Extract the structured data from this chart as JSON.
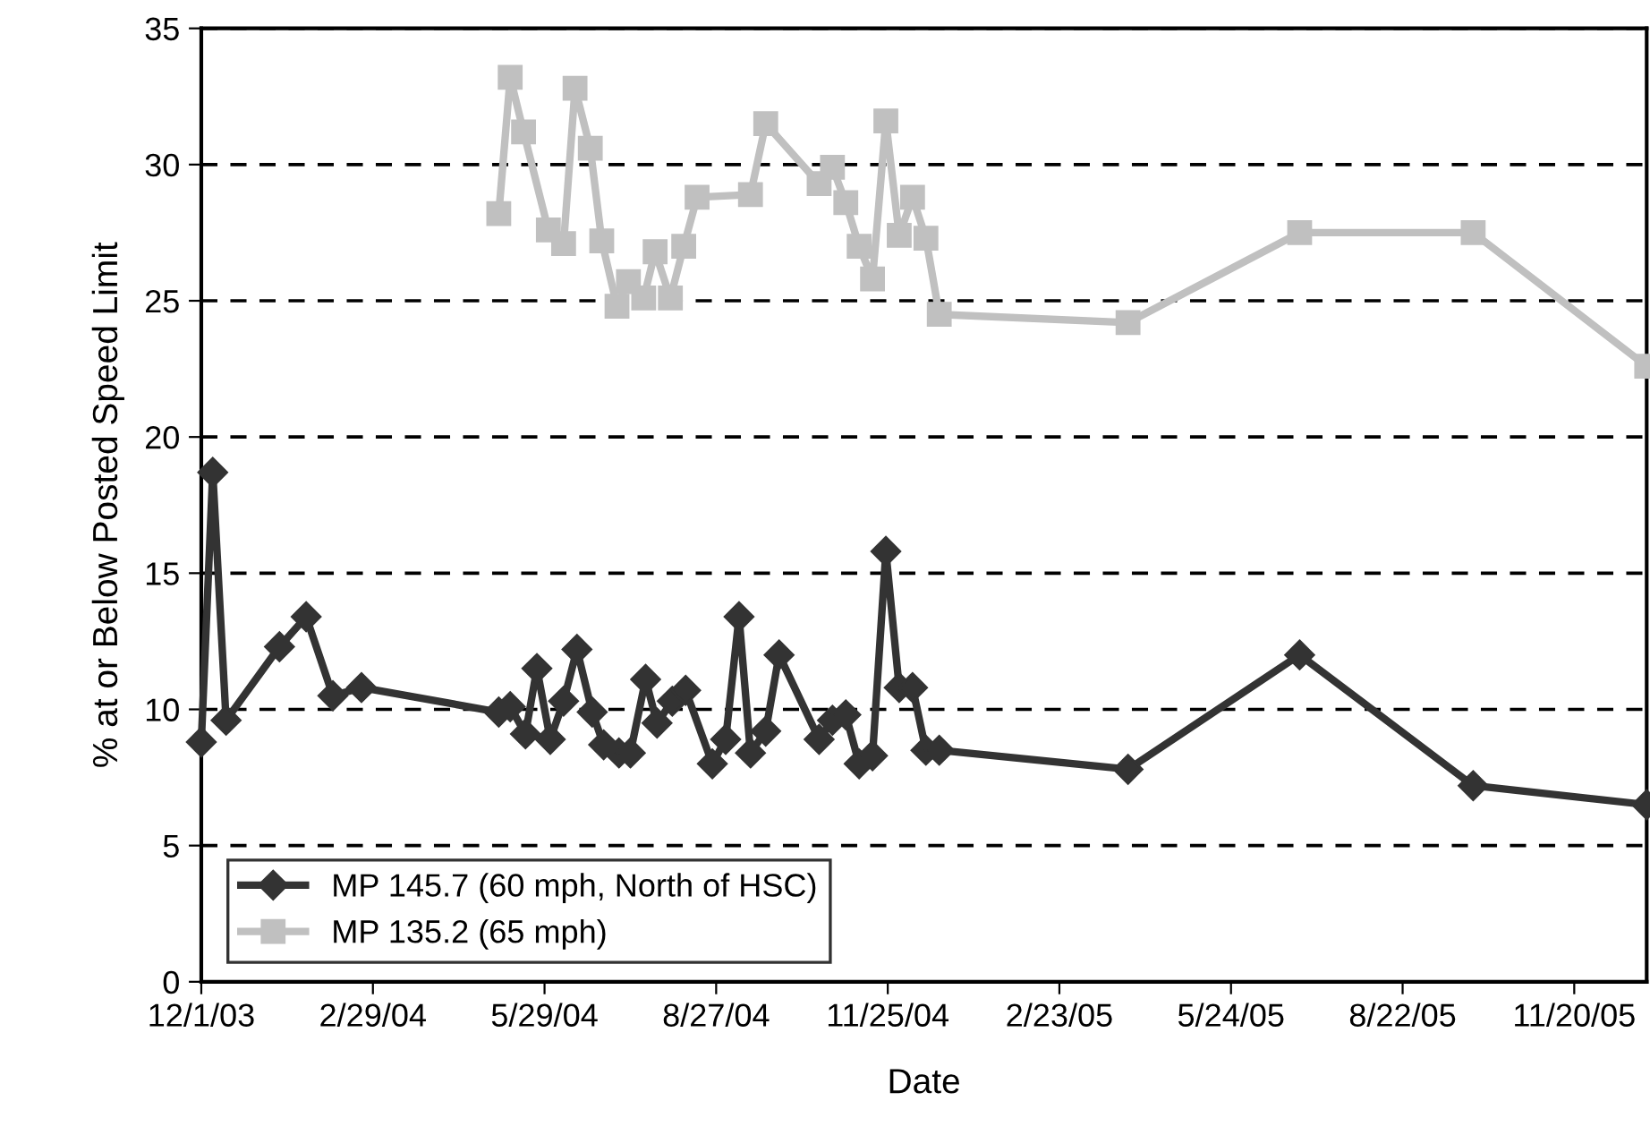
{
  "chart_data": {
    "type": "line",
    "xlabel": "Date",
    "ylabel": "% at or Below Posted Speed Limit",
    "xlim": [
      "2003-12-01",
      "2005-12-28"
    ],
    "xticks": [
      {
        "value": "2003-12-01",
        "label": "12/1/03"
      },
      {
        "value": "2004-02-29",
        "label": "2/29/04"
      },
      {
        "value": "2004-05-29",
        "label": "5/29/04"
      },
      {
        "value": "2004-08-27",
        "label": "8/27/04"
      },
      {
        "value": "2004-11-25",
        "label": "11/25/04"
      },
      {
        "value": "2005-02-23",
        "label": "2/23/05"
      },
      {
        "value": "2005-05-24",
        "label": "5/24/05"
      },
      {
        "value": "2005-08-22",
        "label": "8/22/05"
      },
      {
        "value": "2005-11-20",
        "label": "11/20/05"
      }
    ],
    "ylim": [
      0,
      35
    ],
    "yticks": [
      0,
      5,
      10,
      15,
      20,
      25,
      30,
      35
    ],
    "grid": "y",
    "legend": "bottom left",
    "line_style": "solid",
    "series": [
      {
        "name": "MP 145.7 (60 mph, North of HSC)",
        "color": "#333333",
        "marker": "diamond",
        "x": [
          "2003-12-01",
          "2003-12-07",
          "2003-12-14",
          "2004-01-11",
          "2004-01-25",
          "2004-02-08",
          "2004-02-23",
          "2004-05-05",
          "2004-05-11",
          "2004-05-19",
          "2004-05-25",
          "2004-06-01",
          "2004-06-08",
          "2004-06-15",
          "2004-06-23",
          "2004-06-29",
          "2004-07-07",
          "2004-07-13",
          "2004-07-21",
          "2004-07-27",
          "2004-08-04",
          "2004-08-11",
          "2004-08-25",
          "2004-09-01",
          "2004-09-08",
          "2004-09-14",
          "2004-09-22",
          "2004-09-29",
          "2004-10-20",
          "2004-10-27",
          "2004-11-03",
          "2004-11-10",
          "2004-11-17",
          "2004-11-24",
          "2004-12-01",
          "2004-12-08",
          "2004-12-15",
          "2004-12-22",
          "2005-03-31",
          "2005-06-29",
          "2005-09-28",
          "2005-12-28"
        ],
        "values": [
          8.8,
          18.7,
          9.6,
          12.3,
          13.4,
          10.5,
          10.8,
          9.9,
          10.1,
          9.1,
          11.5,
          8.9,
          10.3,
          12.2,
          9.9,
          8.7,
          8.4,
          8.4,
          11.1,
          9.5,
          10.3,
          10.7,
          8.0,
          8.9,
          13.4,
          8.4,
          9.2,
          12.0,
          8.9,
          9.6,
          9.8,
          8.0,
          8.3,
          15.8,
          10.8,
          10.8,
          8.5,
          8.5,
          7.8,
          12.0,
          7.2,
          6.5
        ]
      },
      {
        "name": "MP 135.2 (65 mph)",
        "color": "#c0c0c0",
        "marker": "square",
        "x": [
          "2004-05-05",
          "2004-05-11",
          "2004-05-18",
          "2004-05-31",
          "2004-06-08",
          "2004-06-14",
          "2004-06-22",
          "2004-06-28",
          "2004-07-06",
          "2004-07-12",
          "2004-07-20",
          "2004-07-26",
          "2004-08-03",
          "2004-08-10",
          "2004-08-17",
          "2004-09-14",
          "2004-09-22",
          "2004-10-20",
          "2004-10-27",
          "2004-11-03",
          "2004-11-10",
          "2004-11-17",
          "2004-11-24",
          "2004-12-01",
          "2004-12-08",
          "2004-12-15",
          "2004-12-22",
          "2005-03-31",
          "2005-06-29",
          "2005-09-28",
          "2005-12-28"
        ],
        "values": [
          28.2,
          33.2,
          31.2,
          27.6,
          27.1,
          32.8,
          30.6,
          27.2,
          24.8,
          25.7,
          25.1,
          26.8,
          25.1,
          27.0,
          28.8,
          28.9,
          31.5,
          29.3,
          29.9,
          28.6,
          27.0,
          25.8,
          31.6,
          27.4,
          28.8,
          27.3,
          24.5,
          24.2,
          27.5,
          27.5,
          22.6
        ]
      }
    ]
  }
}
